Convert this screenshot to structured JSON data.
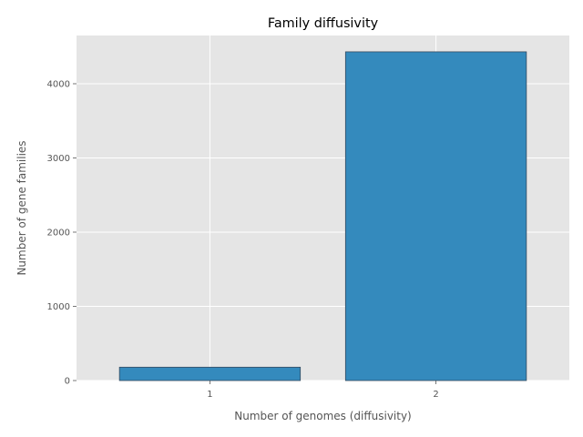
{
  "chart_data": {
    "type": "bar",
    "title": "Family diffusivity",
    "xlabel": "Number of genomes (diffusivity)",
    "ylabel": "Number of gene families",
    "categories": [
      "1",
      "2"
    ],
    "values": [
      180,
      4430
    ],
    "ylim": [
      0,
      4650
    ],
    "yticks": [
      0,
      1000,
      2000,
      3000,
      4000
    ],
    "grid": true,
    "colors": {
      "bar": "#348ABD",
      "bar_edge": "#34495e",
      "plot_background": "#E5E5E5",
      "grid": "#ffffff",
      "tick_text": "#555555"
    }
  }
}
